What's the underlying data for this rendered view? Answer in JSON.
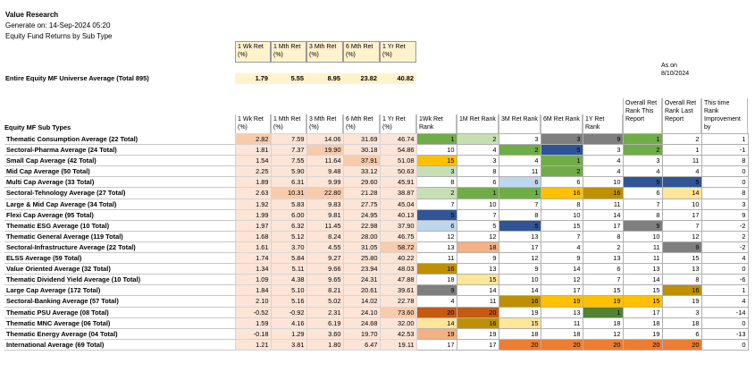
{
  "header": {
    "source": "Value Research",
    "generated": "Generate on: 14-Sep-2024 05:20",
    "report_title": "Equity Fund Returns by Sub Type"
  },
  "return_headers": [
    "1 Wk Ret (%)",
    "1 Mth Ret (%)",
    "3 Mth Ret (%)",
    "6 Mth Ret (%)",
    "1 Yr Ret (%)"
  ],
  "universe": {
    "label": "Entire Equity MF Universe Average (Total 895)",
    "values": [
      "1.79",
      "5.55",
      "8.95",
      "23.82",
      "40.82"
    ]
  },
  "as_on": "As on 8/10/2024",
  "table_header": {
    "subtypes": "Equity MF Sub Types",
    "returns": [
      "1 Wk Ret (%)",
      "1 Mth Ret (%)",
      "3 Mth Ret (%)",
      "6 Mth Ret (%)",
      "1 Yr Ret (%)"
    ],
    "ranks": [
      "1Wk Ret Rank",
      "1M Ret Rank",
      "3M Ret Rank",
      "6M Ret Rank",
      "1Y Ret Rank",
      "Overall Ret Rank This Report",
      "Overall Ret Rank Last Report",
      "This time Rank Improvement by"
    ]
  },
  "colors": {
    "white": "#ffffff",
    "header_bg": "#fff2cc",
    "green": "#70ad47",
    "blue": "#2f5597",
    "gold": "#ffc000",
    "grey": "#7f7f7f",
    "peach": "#f4b183",
    "darkorange": "#c55a11",
    "olive": "#bf9000",
    "lightblue": "#bdd7ee",
    "lightgreen": "#c6e0b4",
    "yellow": "#ffe699",
    "orange": "#ed7d31",
    "darkgreen": "#548235"
  },
  "rows": [
    {
      "name": "Thematic Consumption Average (22 Total)",
      "ret": [
        "2.82",
        "7.59",
        "14.06",
        "31.69",
        "46.74"
      ],
      "ret_bg": [
        "#f8cbad",
        "#fce4d6",
        "#fce4d6",
        "#fce4d6",
        "#fce4d6"
      ],
      "ranks": [
        "1",
        "2",
        "3",
        "3",
        "9",
        "1",
        "2",
        "1"
      ],
      "rank_bg": [
        "green",
        "lightgreen",
        "white",
        "grey",
        "grey",
        "green",
        "white",
        "white"
      ]
    },
    {
      "name": "Sectoral-Pharma Average (24 Total)",
      "ret": [
        "1.81",
        "7.37",
        "19.90",
        "30.18",
        "54.86"
      ],
      "ret_bg": [
        "#fce4d6",
        "#fce4d6",
        "#f8cbad",
        "#fce4d6",
        "#fce4d6"
      ],
      "ranks": [
        "10",
        "4",
        "2",
        "5",
        "3",
        "2",
        "1",
        "-1"
      ],
      "rank_bg": [
        "white",
        "white",
        "green",
        "blue",
        "white",
        "green",
        "white",
        "white"
      ]
    },
    {
      "name": "Small Cap Average (42 Total)",
      "ret": [
        "1.54",
        "7.55",
        "11.64",
        "37.91",
        "51.08"
      ],
      "ret_bg": [
        "#fce4d6",
        "#fce4d6",
        "#fce4d6",
        "#f8cbad",
        "#fce4d6"
      ],
      "ranks": [
        "15",
        "3",
        "4",
        "1",
        "4",
        "3",
        "11",
        "8"
      ],
      "rank_bg": [
        "gold",
        "white",
        "white",
        "green",
        "white",
        "white",
        "white",
        "white"
      ]
    },
    {
      "name": "Mid Cap Average (50 Total)",
      "ret": [
        "2.25",
        "5.90",
        "9.48",
        "33.12",
        "50.63"
      ],
      "ret_bg": [
        "#fce4d6",
        "#fce4d6",
        "#fce4d6",
        "#fce4d6",
        "#fce4d6"
      ],
      "ranks": [
        "3",
        "8",
        "11",
        "2",
        "4",
        "4",
        "4",
        "0"
      ],
      "rank_bg": [
        "lightgreen",
        "white",
        "white",
        "green",
        "white",
        "white",
        "white",
        "white"
      ]
    },
    {
      "name": "Multi Cap Average (33 Total)",
      "ret": [
        "1.89",
        "6.31",
        "9.99",
        "29.60",
        "45.91"
      ],
      "ret_bg": [
        "#fce4d6",
        "#fce4d6",
        "#fce4d6",
        "#fce4d6",
        "#fce4d6"
      ],
      "ranks": [
        "8",
        "6",
        "6",
        "6",
        "10",
        "5",
        "5",
        "0"
      ],
      "rank_bg": [
        "white",
        "white",
        "lightblue",
        "white",
        "white",
        "blue",
        "blue",
        "white"
      ]
    },
    {
      "name": "Sectoral-Tehnology Average (27 Total)",
      "ret": [
        "2.63",
        "10.31",
        "22.80",
        "21.28",
        "38.87"
      ],
      "ret_bg": [
        "#fce4d6",
        "#f8cbad",
        "#f8cbad",
        "#fce4d6",
        "#fce4d6"
      ],
      "ranks": [
        "2",
        "1",
        "1",
        "16",
        "16",
        "6",
        "14",
        "8"
      ],
      "rank_bg": [
        "lightgreen",
        "green",
        "green",
        "gold",
        "olive",
        "white",
        "yellow",
        "white"
      ]
    },
    {
      "name": "Large & Mid Cap Average (34 Total)",
      "ret": [
        "1.92",
        "5.83",
        "9.83",
        "27.75",
        "45.04"
      ],
      "ret_bg": [
        "#fce4d6",
        "#fce4d6",
        "#fce4d6",
        "#fce4d6",
        "#fce4d6"
      ],
      "ranks": [
        "7",
        "10",
        "7",
        "8",
        "11",
        "7",
        "10",
        "3"
      ],
      "rank_bg": [
        "white",
        "white",
        "white",
        "white",
        "white",
        "white",
        "white",
        "white"
      ]
    },
    {
      "name": "Flexi Cap Average (95 Total)",
      "ret": [
        "1.99",
        "6.00",
        "9.81",
        "24.95",
        "40.13"
      ],
      "ret_bg": [
        "#fce4d6",
        "#fce4d6",
        "#fce4d6",
        "#fce4d6",
        "#fce4d6"
      ],
      "ranks": [
        "5",
        "7",
        "8",
        "10",
        "14",
        "8",
        "17",
        "9"
      ],
      "rank_bg": [
        "blue",
        "white",
        "white",
        "white",
        "white",
        "white",
        "white",
        "white"
      ]
    },
    {
      "name": "Thematic ESG Average (10 Total)",
      "ret": [
        "1.97",
        "6.32",
        "11.45",
        "22.98",
        "37.90"
      ],
      "ret_bg": [
        "#fce4d6",
        "#fce4d6",
        "#fce4d6",
        "#fce4d6",
        "#fce4d6"
      ],
      "ranks": [
        "6",
        "5",
        "5",
        "15",
        "17",
        "9",
        "7",
        "-2"
      ],
      "rank_bg": [
        "lightblue",
        "white",
        "blue",
        "white",
        "white",
        "grey",
        "white",
        "white"
      ]
    },
    {
      "name": "Thematic General Average (119 Total)",
      "ret": [
        "1.68",
        "5.12",
        "8.24",
        "28.00",
        "46.75"
      ],
      "ret_bg": [
        "#fce4d6",
        "#fce4d6",
        "#fce4d6",
        "#fce4d6",
        "#fce4d6"
      ],
      "ranks": [
        "12",
        "12",
        "13",
        "7",
        "8",
        "10",
        "12",
        "2"
      ],
      "rank_bg": [
        "white",
        "white",
        "white",
        "white",
        "white",
        "white",
        "white",
        "white"
      ]
    },
    {
      "name": "Sectoral-Infrastructure Average (22 Total)",
      "ret": [
        "1.61",
        "3.70",
        "4.55",
        "31.05",
        "58.72"
      ],
      "ret_bg": [
        "#fce4d6",
        "#fce4d6",
        "#fce4d6",
        "#fce4d6",
        "#f8cbad"
      ],
      "ranks": [
        "13",
        "18",
        "17",
        "4",
        "2",
        "11",
        "9",
        "-2"
      ],
      "rank_bg": [
        "white",
        "peach",
        "white",
        "white",
        "white",
        "white",
        "grey",
        "white"
      ]
    },
    {
      "name": "ELSS Average (59 Total)",
      "ret": [
        "1.74",
        "5.84",
        "9.27",
        "25.80",
        "40.22"
      ],
      "ret_bg": [
        "#fce4d6",
        "#fce4d6",
        "#fce4d6",
        "#fce4d6",
        "#fce4d6"
      ],
      "ranks": [
        "11",
        "9",
        "12",
        "9",
        "13",
        "11",
        "15",
        "4"
      ],
      "rank_bg": [
        "white",
        "white",
        "white",
        "white",
        "white",
        "white",
        "white",
        "white"
      ]
    },
    {
      "name": "Value Oriented Average (32 Total)",
      "ret": [
        "1.34",
        "5.11",
        "9.66",
        "23.94",
        "48.03"
      ],
      "ret_bg": [
        "#fce4d6",
        "#fce4d6",
        "#fce4d6",
        "#fce4d6",
        "#fce4d6"
      ],
      "ranks": [
        "16",
        "13",
        "9",
        "14",
        "6",
        "13",
        "13",
        "0"
      ],
      "rank_bg": [
        "olive",
        "white",
        "white",
        "white",
        "white",
        "white",
        "white",
        "white"
      ]
    },
    {
      "name": "Thematic Dividend Yield Average (10 Total)",
      "ret": [
        "1.09",
        "4.38",
        "9.65",
        "24.31",
        "47.88"
      ],
      "ret_bg": [
        "#fce4d6",
        "#fce4d6",
        "#fce4d6",
        "#fce4d6",
        "#fce4d6"
      ],
      "ranks": [
        "18",
        "15",
        "10",
        "12",
        "7",
        "14",
        "8",
        "-6"
      ],
      "rank_bg": [
        "white",
        "yellow",
        "white",
        "white",
        "white",
        "white",
        "white",
        "white"
      ]
    },
    {
      "name": "Large Cap Average (172 Total)",
      "ret": [
        "1.84",
        "5.10",
        "8.21",
        "20.61",
        "39.61"
      ],
      "ret_bg": [
        "#fce4d6",
        "#fce4d6",
        "#fce4d6",
        "#fce4d6",
        "#fce4d6"
      ],
      "ranks": [
        "9",
        "14",
        "14",
        "17",
        "15",
        "15",
        "16",
        "1"
      ],
      "rank_bg": [
        "grey",
        "white",
        "white",
        "white",
        "white",
        "white",
        "olive",
        "white"
      ]
    },
    {
      "name": "Sectoral-Banking Average (57 Total)",
      "ret": [
        "2.10",
        "5.16",
        "5.02",
        "14.02",
        "22.78"
      ],
      "ret_bg": [
        "#fce4d6",
        "#fce4d6",
        "#fce4d6",
        "#fce4d6",
        "#fce4d6"
      ],
      "ranks": [
        "4",
        "11",
        "16",
        "19",
        "19",
        "15",
        "19",
        "4"
      ],
      "rank_bg": [
        "white",
        "white",
        "olive",
        "gold",
        "gold",
        "gold",
        "white",
        "white"
      ]
    },
    {
      "name": "Thematic PSU Average (08 Total)",
      "ret": [
        "-0.52",
        "-0.92",
        "2.31",
        "24.10",
        "73.60"
      ],
      "ret_bg": [
        "#fce4d6",
        "#fce4d6",
        "#fce4d6",
        "#fce4d6",
        "#f8cbad"
      ],
      "ranks": [
        "20",
        "20",
        "19",
        "13",
        "1",
        "17",
        "3",
        "-14"
      ],
      "rank_bg": [
        "darkorange",
        "darkorange",
        "white",
        "white",
        "darkgreen",
        "white",
        "white",
        "white"
      ]
    },
    {
      "name": "Thematic MNC Average (06 Total)",
      "ret": [
        "1.59",
        "4.16",
        "6.19",
        "24.68",
        "32.00"
      ],
      "ret_bg": [
        "#fce4d6",
        "#fce4d6",
        "#fce4d6",
        "#fce4d6",
        "#fce4d6"
      ],
      "ranks": [
        "14",
        "16",
        "15",
        "11",
        "18",
        "18",
        "18",
        "0"
      ],
      "rank_bg": [
        "yellow",
        "olive",
        "yellow",
        "white",
        "white",
        "white",
        "white",
        "white"
      ]
    },
    {
      "name": "Thematic Energy Average (04 Total)",
      "ret": [
        "-0.18",
        "1.29",
        "3.60",
        "19.70",
        "42.53"
      ],
      "ret_bg": [
        "#fce4d6",
        "#fce4d6",
        "#fce4d6",
        "#fce4d6",
        "#fce4d6"
      ],
      "ranks": [
        "19",
        "19",
        "18",
        "18",
        "12",
        "19",
        "6",
        "-13"
      ],
      "rank_bg": [
        "peach",
        "white",
        "white",
        "white",
        "white",
        "white",
        "white",
        "white"
      ]
    },
    {
      "name": "International Average (69 Total)",
      "ret": [
        "1.21",
        "3.81",
        "1.80",
        "6.47",
        "19.11"
      ],
      "ret_bg": [
        "#fce4d6",
        "#fce4d6",
        "#fce4d6",
        "#fce4d6",
        "#fce4d6"
      ],
      "ranks": [
        "17",
        "17",
        "20",
        "20",
        "20",
        "20",
        "20",
        "0"
      ],
      "rank_bg": [
        "white",
        "white",
        "orange",
        "orange",
        "orange",
        "orange",
        "orange",
        "white"
      ]
    }
  ]
}
